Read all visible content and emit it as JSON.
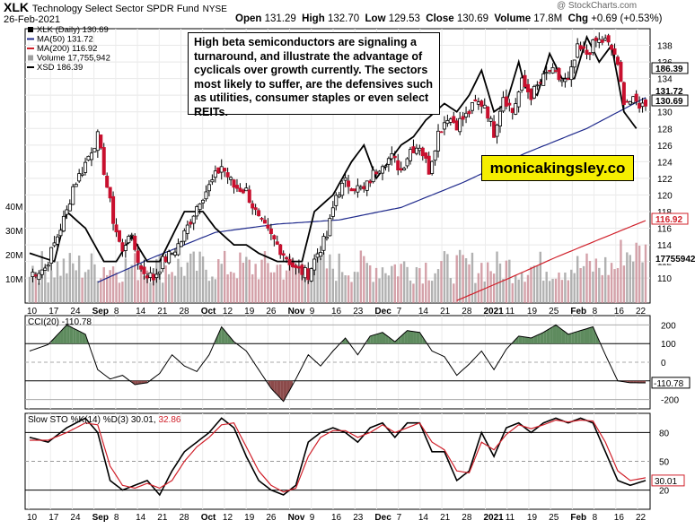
{
  "header": {
    "symbol": "XLK",
    "name": "Technology Select Sector SPDR Fund",
    "exchange": "NYSE",
    "date": "26-Feb-2021",
    "open_label": "Open",
    "open": "131.29",
    "high_label": "High",
    "high": "132.70",
    "low_label": "Low",
    "low": "129.53",
    "close_label": "Close",
    "close": "130.69",
    "volume_label": "Volume",
    "volume": "17.8M",
    "chg_label": "Chg",
    "chg": "+0.69 (+0.53%)",
    "watermark": "@ StockCharts.com"
  },
  "legend": {
    "xlk": "XLK (Daily) 130.69",
    "ma50": "MA(50) 131.72",
    "ma200": "MA(200) 116.92",
    "volume": "Volume 17,755,942",
    "xsd": "XSD 186.39"
  },
  "annotation": {
    "text": "High beta semiconductors are signaling a turnaround, and illustrate the advantage of cyclicals over growth currently. The sectors most likely to suffer, are the defensives such as utilities, consumer staples or even select REITs."
  },
  "brand": "monicakingsley.co",
  "price_labels": {
    "xsd": "186.39",
    "ma50": "131.72",
    "close": "130.69",
    "ma200": "116.92",
    "volume": "17755942"
  },
  "cci": {
    "label": "CCI(20) -110.78",
    "value_tag": "-110.78",
    "ticks": [
      "200",
      "100",
      "0",
      "-100",
      "-200"
    ]
  },
  "sto": {
    "label_prefix": "Slow STO %K(14) %D(3)",
    "k": "30.01",
    "d": "32.86",
    "value_tag": "30.01",
    "ticks": [
      "80",
      "50",
      "20"
    ]
  },
  "colors": {
    "candle_up": "#ffffff",
    "candle_down": "#c8102e",
    "ma50": "#1f2a8c",
    "ma200": "#d0202a",
    "xsd": "#000000",
    "volume": "#9e9e9e",
    "volume_down": "#c8102e",
    "cci_fill_pos": "#5e8b5e",
    "cci_fill_neg": "#8b4a4a",
    "sto_k": "#000000",
    "sto_d": "#d0202a",
    "brand_bg": "#f5ee00"
  },
  "chart_data": [
    {
      "type": "candlestick",
      "title": "XLK Technology Select Sector SPDR Fund NYSE",
      "x_tick_labels": [
        "10",
        "17",
        "24",
        "Sep",
        "8",
        "14",
        "21",
        "28",
        "Oct",
        "12",
        "19",
        "26",
        "Nov",
        "9",
        "16",
        "23",
        "Dec",
        "7",
        "14",
        "21",
        "28",
        "2021",
        "11",
        "19",
        "25",
        "Feb",
        "8",
        "16",
        "22"
      ],
      "ylim": [
        107,
        140
      ],
      "y_ticks": [
        110,
        112,
        114,
        116,
        118,
        120,
        122,
        124,
        126,
        128,
        130,
        132,
        134,
        136,
        138
      ],
      "volume_axis_ticks": [
        "10M",
        "20M",
        "30M",
        "40M"
      ],
      "price_anchors": {
        "x": [
          0,
          5,
          12,
          14,
          17,
          20,
          22,
          25,
          27,
          30,
          32,
          34,
          36,
          40,
          43,
          46,
          49,
          52,
          55,
          58,
          62,
          66,
          70,
          74,
          78,
          82,
          86,
          90,
          93,
          96,
          99,
          102,
          105,
          108,
          111,
          114,
          117,
          120,
          123,
          126,
          129,
          132,
          135,
          138,
          141,
          144,
          147,
          150,
          153,
          156,
          159,
          162,
          165,
          168,
          171,
          174,
          177,
          180,
          183,
          186,
          189,
          192,
          199
        ],
        "close": [
          110.5,
          111.2,
          118,
          121,
          123,
          125.5,
          127,
          121,
          117,
          113,
          115.5,
          113.5,
          111,
          110,
          112,
          113,
          114.5,
          117,
          119.5,
          121,
          123.5,
          121,
          120.5,
          117,
          115,
          113,
          111,
          110.5,
          113,
          115,
          120,
          121.5,
          121,
          120.5,
          122.5,
          124,
          124.5,
          123,
          125.5,
          126,
          123,
          127.5,
          129.5,
          128.5,
          129.5,
          131,
          131,
          127.5,
          132,
          130,
          133.5,
          132,
          133.5,
          135,
          134,
          133.5,
          137.5,
          137,
          138.5,
          138.5,
          137,
          131.5,
          130.69
        ]
      },
      "close": 130.69,
      "ma50": 131.72,
      "ma200": 116.92,
      "volume_last": 17755942
    },
    {
      "type": "line",
      "series": [
        {
          "name": "MA(50)",
          "x": [
            22,
            40,
            60,
            80,
            100,
            120,
            140,
            160,
            180,
            199
          ],
          "values": [
            109.5,
            112.5,
            115.5,
            116.5,
            117,
            118.5,
            121.5,
            125,
            128,
            131.72
          ]
        },
        {
          "name": "MA(200)",
          "x": [
            138,
            155,
            170,
            185,
            199
          ],
          "values": [
            107.3,
            110,
            112.5,
            114.8,
            116.92
          ]
        },
        {
          "name": "XSD",
          "x": [
            0,
            8,
            12,
            18,
            24,
            28,
            33,
            38,
            42,
            46,
            50,
            56,
            60,
            66,
            70,
            74,
            80,
            88,
            92,
            98,
            104,
            108,
            112,
            116,
            120,
            124,
            128,
            134,
            138,
            142,
            146,
            150,
            154,
            158,
            160,
            164,
            168,
            172,
            176,
            180,
            184,
            188,
            192,
            196,
            199
          ],
          "values": [
            113,
            112,
            118,
            116,
            112,
            112,
            115,
            112,
            112,
            115,
            118,
            118,
            116,
            114,
            114,
            113,
            112,
            112,
            118,
            120,
            124,
            126,
            122,
            124,
            126,
            127,
            129,
            131,
            130,
            132,
            135,
            130,
            131,
            136,
            133,
            132,
            137,
            134,
            134,
            139,
            136,
            138,
            130,
            128,
            186.39
          ],
          "note": "XSD drawn on overlaid scale; last value 186.39"
        }
      ]
    },
    {
      "type": "line",
      "title": "CCI(20)",
      "ylim": [
        -250,
        250
      ],
      "y_ticks": [
        200,
        100,
        0,
        -100,
        -200
      ],
      "series": [
        {
          "name": "CCI(20)",
          "x": [
            0,
            6,
            12,
            18,
            22,
            26,
            30,
            34,
            38,
            42,
            46,
            50,
            54,
            58,
            62,
            66,
            70,
            74,
            78,
            82,
            86,
            90,
            94,
            98,
            102,
            106,
            110,
            114,
            118,
            122,
            126,
            130,
            134,
            138,
            142,
            146,
            150,
            154,
            158,
            162,
            166,
            170,
            174,
            178,
            182,
            186,
            190,
            194,
            199
          ],
          "values": [
            60,
            95,
            200,
            150,
            -40,
            -90,
            -70,
            -120,
            -110,
            -60,
            40,
            -20,
            -50,
            40,
            190,
            110,
            60,
            -40,
            -140,
            -210,
            -90,
            40,
            -20,
            60,
            130,
            40,
            140,
            160,
            110,
            170,
            160,
            60,
            30,
            -70,
            -10,
            60,
            -40,
            70,
            140,
            130,
            160,
            200,
            150,
            170,
            190,
            40,
            -100,
            -110,
            -110.78
          ]
        }
      ]
    },
    {
      "type": "line",
      "title": "Slow STO %K(14) %D(3)",
      "ylim": [
        0,
        100
      ],
      "y_ticks": [
        80,
        50,
        20
      ],
      "series": [
        {
          "name": "%K(14)",
          "x": [
            0,
            6,
            12,
            18,
            22,
            26,
            30,
            34,
            38,
            42,
            46,
            50,
            54,
            58,
            62,
            66,
            70,
            74,
            78,
            82,
            86,
            90,
            94,
            98,
            102,
            106,
            110,
            114,
            118,
            122,
            126,
            130,
            134,
            138,
            142,
            146,
            150,
            154,
            158,
            162,
            166,
            170,
            174,
            178,
            182,
            186,
            190,
            194,
            199
          ],
          "values": [
            75,
            70,
            85,
            95,
            80,
            30,
            20,
            25,
            30,
            15,
            40,
            60,
            70,
            80,
            95,
            85,
            55,
            30,
            20,
            15,
            25,
            70,
            80,
            85,
            80,
            70,
            85,
            90,
            75,
            90,
            90,
            60,
            60,
            30,
            40,
            80,
            55,
            85,
            90,
            80,
            90,
            95,
            90,
            95,
            90,
            60,
            30,
            25,
            30.01
          ]
        },
        {
          "name": "%D(3)",
          "x": [
            0,
            6,
            12,
            18,
            22,
            26,
            30,
            34,
            38,
            42,
            46,
            50,
            54,
            58,
            62,
            66,
            70,
            74,
            78,
            82,
            86,
            90,
            94,
            98,
            102,
            106,
            110,
            114,
            118,
            122,
            126,
            130,
            134,
            138,
            142,
            146,
            150,
            154,
            158,
            162,
            166,
            170,
            174,
            178,
            182,
            186,
            190,
            194,
            199
          ],
          "values": [
            72,
            72,
            80,
            90,
            88,
            45,
            25,
            22,
            27,
            22,
            30,
            50,
            65,
            75,
            88,
            90,
            65,
            40,
            25,
            18,
            22,
            55,
            75,
            82,
            82,
            75,
            80,
            88,
            80,
            85,
            90,
            70,
            62,
            40,
            38,
            70,
            62,
            78,
            88,
            84,
            88,
            93,
            91,
            93,
            92,
            70,
            40,
            30,
            32.86
          ]
        }
      ]
    }
  ]
}
